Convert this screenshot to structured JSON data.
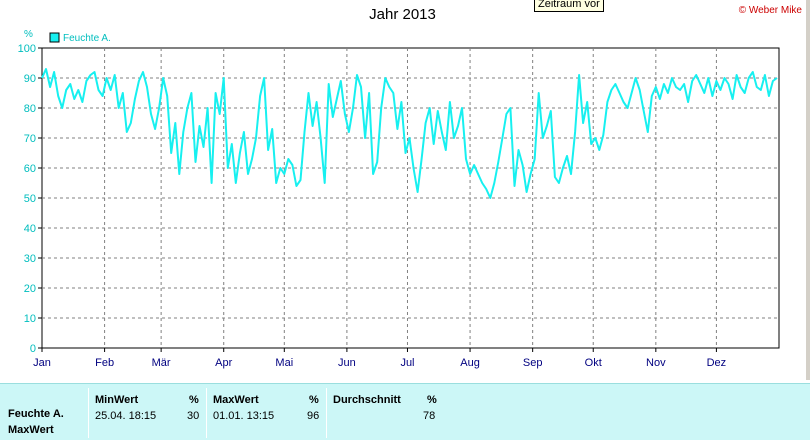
{
  "title": "Jahr 2013",
  "tooltip": "Zeitraum vor",
  "credit": "© Weber Mike",
  "colors": {
    "series": "#17f0f0",
    "axis_text": "#00bebe",
    "grid": "#808080",
    "credit": "#cc0000"
  },
  "chart_data": {
    "type": "line",
    "title": "Jahr 2013",
    "ylabel": "%",
    "ylim": [
      0,
      100
    ],
    "yticks": [
      0,
      10,
      20,
      30,
      40,
      50,
      60,
      70,
      80,
      90,
      100
    ],
    "xlim": [
      1,
      366
    ],
    "xticks": [
      {
        "label": "Jan",
        "day": 1
      },
      {
        "label": "Feb",
        "day": 32
      },
      {
        "label": "Mär",
        "day": 60
      },
      {
        "label": "Apr",
        "day": 91
      },
      {
        "label": "Mai",
        "day": 121
      },
      {
        "label": "Jun",
        "day": 152
      },
      {
        "label": "Jul",
        "day": 182
      },
      {
        "label": "Aug",
        "day": 213
      },
      {
        "label": "Sep",
        "day": 244
      },
      {
        "label": "Okt",
        "day": 274
      },
      {
        "label": "Nov",
        "day": 305
      },
      {
        "label": "Dez",
        "day": 335
      }
    ],
    "grid": true,
    "legend_position": "top-left",
    "series": [
      {
        "name": "Feuchte A.",
        "color": "#17f0f0",
        "x": [
          1,
          3,
          5,
          7,
          9,
          11,
          13,
          15,
          17,
          19,
          21,
          23,
          25,
          27,
          29,
          31,
          33,
          35,
          37,
          39,
          41,
          43,
          45,
          47,
          49,
          51,
          53,
          55,
          57,
          59,
          61,
          63,
          65,
          67,
          69,
          71,
          73,
          75,
          77,
          79,
          81,
          83,
          85,
          87,
          89,
          91,
          93,
          95,
          97,
          99,
          101,
          103,
          105,
          107,
          109,
          111,
          113,
          115,
          117,
          119,
          121,
          123,
          125,
          127,
          129,
          131,
          133,
          135,
          137,
          139,
          141,
          143,
          145,
          147,
          149,
          151,
          153,
          155,
          157,
          159,
          161,
          163,
          165,
          167,
          169,
          171,
          173,
          175,
          177,
          179,
          181,
          183,
          185,
          187,
          189,
          191,
          193,
          195,
          197,
          199,
          201,
          203,
          205,
          207,
          209,
          211,
          213,
          215,
          217,
          219,
          221,
          223,
          225,
          227,
          229,
          231,
          233,
          235,
          237,
          239,
          241,
          243,
          245,
          247,
          249,
          251,
          253,
          255,
          257,
          259,
          261,
          263,
          265,
          267,
          269,
          271,
          273,
          275,
          277,
          279,
          281,
          283,
          285,
          287,
          289,
          291,
          293,
          295,
          297,
          299,
          301,
          303,
          305,
          307,
          309,
          311,
          313,
          315,
          317,
          319,
          321,
          323,
          325,
          327,
          329,
          331,
          333,
          335,
          337,
          339,
          341,
          343,
          345,
          347,
          349,
          351,
          353,
          355,
          357,
          359,
          361,
          363,
          365
        ],
        "values": [
          90,
          93,
          87,
          92,
          84,
          80,
          86,
          88,
          83,
          86,
          82,
          89,
          91,
          92,
          86,
          84,
          90,
          86,
          91,
          80,
          85,
          72,
          75,
          83,
          89,
          92,
          87,
          78,
          73,
          80,
          90,
          84,
          65,
          75,
          58,
          72,
          80,
          85,
          62,
          74,
          67,
          80,
          55,
          85,
          78,
          90,
          60,
          68,
          55,
          65,
          72,
          58,
          63,
          70,
          84,
          90,
          66,
          73,
          55,
          60,
          58,
          63,
          61,
          54,
          56,
          72,
          85,
          74,
          82,
          70,
          55,
          88,
          77,
          83,
          89,
          78,
          72,
          80,
          91,
          87,
          70,
          85,
          58,
          62,
          80,
          90,
          87,
          85,
          73,
          82,
          65,
          70,
          60,
          52,
          63,
          75,
          80,
          68,
          79,
          72,
          66,
          82,
          70,
          74,
          80,
          63,
          58,
          61,
          58,
          55,
          53,
          50,
          55,
          62,
          70,
          78,
          80,
          54,
          66,
          61,
          52,
          58,
          63,
          85,
          70,
          74,
          79,
          57,
          55,
          60,
          64,
          58,
          72,
          91,
          75,
          82,
          68,
          70,
          66,
          71,
          82,
          86,
          88,
          85,
          82,
          80,
          85,
          90,
          86,
          79,
          72,
          84,
          87,
          83,
          88,
          85,
          90,
          87,
          86,
          88,
          82,
          89,
          91,
          88,
          85,
          90,
          84,
          89,
          86,
          90,
          88,
          83,
          91,
          87,
          85,
          90,
          92,
          87,
          86,
          91,
          84,
          89,
          90
        ]
      }
    ]
  },
  "stats": {
    "row_label_1": "Feuchte A.",
    "row_label_2": "MaxWert",
    "min": {
      "header": "MinWert",
      "unit": "%",
      "when": "25.04.  18:15",
      "value": "30"
    },
    "max": {
      "header": "MaxWert",
      "unit": "%",
      "when": "01.01.  13:15",
      "value": "96"
    },
    "avg": {
      "header": "Durchschnitt",
      "unit": "%",
      "value": "78"
    }
  }
}
